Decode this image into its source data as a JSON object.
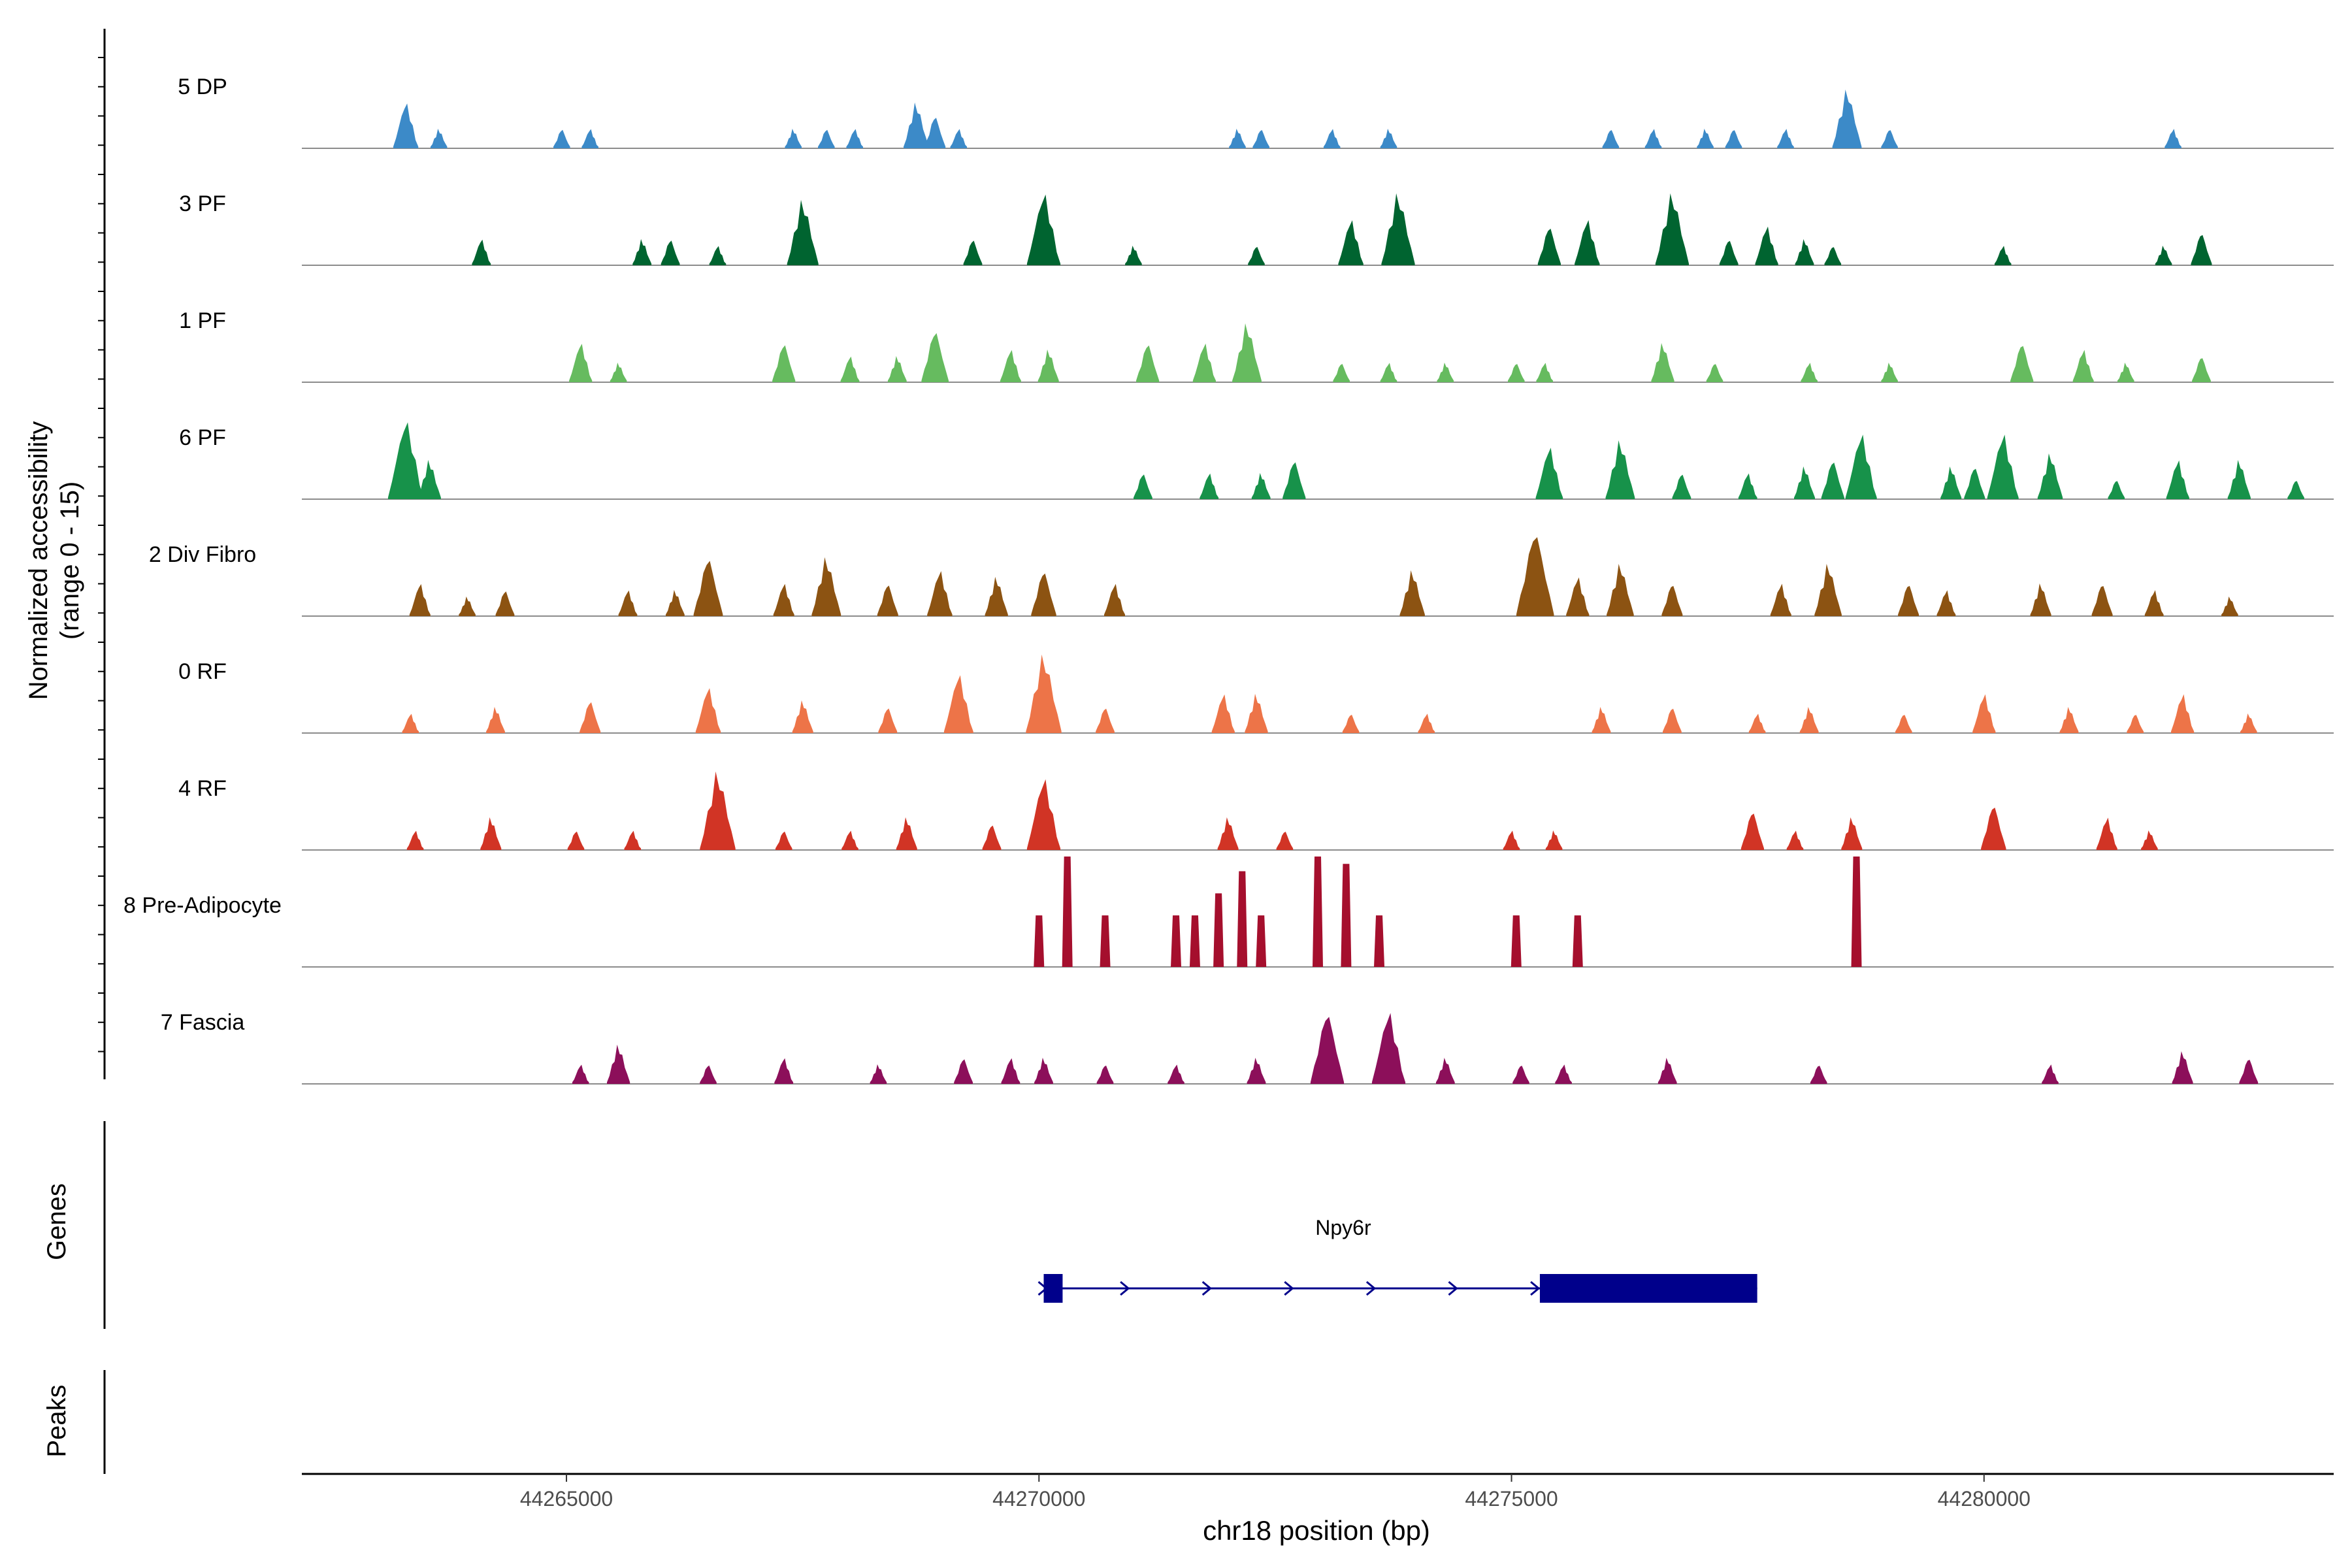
{
  "chart_data": {
    "type": "area",
    "panels": {
      "accessibility": {
        "ylabel_line1": "Normalized accessibility",
        "ylabel_line2": "(range 0 - 15)",
        "ylim": [
          0,
          15
        ],
        "tracks": [
          {
            "name": "5 DP",
            "color": "#3C8AC8",
            "peaks": [
              [
                44263300,
                7
              ],
              [
                44263650,
                3
              ],
              [
                44264950,
                3
              ],
              [
                44265250,
                3
              ],
              [
                44267400,
                3
              ],
              [
                44267750,
                3
              ],
              [
                44268050,
                3
              ],
              [
                44268700,
                7
              ],
              [
                44268900,
                5
              ],
              [
                44269150,
                3
              ],
              [
                44272100,
                3
              ],
              [
                44272350,
                3
              ],
              [
                44273100,
                3
              ],
              [
                44273700,
                3
              ],
              [
                44276050,
                3
              ],
              [
                44276500,
                3
              ],
              [
                44277050,
                3
              ],
              [
                44277350,
                3
              ],
              [
                44277900,
                3
              ],
              [
                44278550,
                9
              ],
              [
                44279000,
                3
              ],
              [
                44282000,
                3
              ]
            ]
          },
          {
            "name": "3 PF",
            "color": "#006430",
            "peaks": [
              [
                44264100,
                4
              ],
              [
                44265800,
                4
              ],
              [
                44266100,
                4
              ],
              [
                44266600,
                3
              ],
              [
                44267500,
                10
              ],
              [
                44269300,
                4
              ],
              [
                44270050,
                11
              ],
              [
                44271000,
                3
              ],
              [
                44272300,
                3
              ],
              [
                44273300,
                7
              ],
              [
                44273800,
                11
              ],
              [
                44275400,
                6
              ],
              [
                44275800,
                7
              ],
              [
                44276700,
                11
              ],
              [
                44277300,
                4
              ],
              [
                44277700,
                6
              ],
              [
                44278100,
                4
              ],
              [
                44278400,
                3
              ],
              [
                44280200,
                3
              ],
              [
                44281900,
                3
              ],
              [
                44282300,
                5
              ]
            ]
          },
          {
            "name": "1 PF",
            "color": "#66BB5F",
            "peaks": [
              [
                44265150,
                6
              ],
              [
                44265550,
                3
              ],
              [
                44267300,
                6
              ],
              [
                44268000,
                4
              ],
              [
                44268500,
                4
              ],
              [
                44268900,
                8
              ],
              [
                44269700,
                5
              ],
              [
                44270100,
                5
              ],
              [
                44271150,
                6
              ],
              [
                44271750,
                6
              ],
              [
                44272200,
                9
              ],
              [
                44273200,
                3
              ],
              [
                44273700,
                3
              ],
              [
                44274300,
                3
              ],
              [
                44275050,
                3
              ],
              [
                44275350,
                3
              ],
              [
                44276600,
                6
              ],
              [
                44277150,
                3
              ],
              [
                44278150,
                3
              ],
              [
                44279000,
                3
              ],
              [
                44280400,
                6
              ],
              [
                44281050,
                5
              ],
              [
                44281500,
                3
              ],
              [
                44282300,
                4
              ]
            ]
          },
          {
            "name": "6 PF",
            "color": "#17924A",
            "peaks": [
              [
                44263300,
                12
              ],
              [
                44263550,
                6
              ],
              [
                44271100,
                4
              ],
              [
                44271800,
                4
              ],
              [
                44272350,
                4
              ],
              [
                44272700,
                6
              ],
              [
                44275400,
                8
              ],
              [
                44276150,
                9
              ],
              [
                44276800,
                4
              ],
              [
                44277500,
                4
              ],
              [
                44278100,
                5
              ],
              [
                44278400,
                6
              ],
              [
                44278700,
                10
              ],
              [
                44279650,
                5
              ],
              [
                44279900,
                5
              ],
              [
                44280200,
                10
              ],
              [
                44280700,
                7
              ],
              [
                44281400,
                3
              ],
              [
                44282050,
                6
              ],
              [
                44282700,
                6
              ],
              [
                44283300,
                3
              ]
            ]
          },
          {
            "name": "2 Div Fibro",
            "color": "#8C5312",
            "peaks": [
              [
                44263450,
                5
              ],
              [
                44263950,
                3
              ],
              [
                44264350,
                4
              ],
              [
                44265650,
                4
              ],
              [
                44266150,
                4
              ],
              [
                44266500,
                9
              ],
              [
                44267300,
                5
              ],
              [
                44267750,
                9
              ],
              [
                44268400,
                5
              ],
              [
                44268950,
                7
              ],
              [
                44269550,
                6
              ],
              [
                44270050,
                7
              ],
              [
                44270800,
                5
              ],
              [
                44273950,
                7
              ],
              [
                44275250,
                13
              ],
              [
                44275700,
                6
              ],
              [
                44276150,
                8
              ],
              [
                44276700,
                5
              ],
              [
                44277850,
                5
              ],
              [
                44278350,
                8
              ],
              [
                44279200,
                5
              ],
              [
                44279600,
                4
              ],
              [
                44280600,
                5
              ],
              [
                44281250,
                5
              ],
              [
                44281800,
                4
              ],
              [
                44282600,
                3
              ]
            ]
          },
          {
            "name": "0 RF",
            "color": "#ED7448",
            "peaks": [
              [
                44263350,
                3
              ],
              [
                44264250,
                4
              ],
              [
                44265250,
                5
              ],
              [
                44266500,
                7
              ],
              [
                44267500,
                5
              ],
              [
                44268400,
                4
              ],
              [
                44269150,
                9
              ],
              [
                44270050,
                12
              ],
              [
                44270700,
                4
              ],
              [
                44271950,
                6
              ],
              [
                44272300,
                6
              ],
              [
                44273300,
                3
              ],
              [
                44274100,
                3
              ],
              [
                44275950,
                4
              ],
              [
                44276700,
                4
              ],
              [
                44277600,
                3
              ],
              [
                44278150,
                4
              ],
              [
                44279150,
                3
              ],
              [
                44280000,
                6
              ],
              [
                44280900,
                4
              ],
              [
                44281600,
                3
              ],
              [
                44282100,
                6
              ],
              [
                44282800,
                3
              ]
            ]
          },
          {
            "name": "4 RF",
            "color": "#D13425",
            "peaks": [
              [
                44263400,
                3
              ],
              [
                44264200,
                5
              ],
              [
                44265100,
                3
              ],
              [
                44265700,
                3
              ],
              [
                44266600,
                12
              ],
              [
                44267300,
                3
              ],
              [
                44268000,
                3
              ],
              [
                44268600,
                5
              ],
              [
                44269500,
                4
              ],
              [
                44270050,
                11
              ],
              [
                44272000,
                5
              ],
              [
                44272600,
                3
              ],
              [
                44275000,
                3
              ],
              [
                44275450,
                3
              ],
              [
                44277550,
                6
              ],
              [
                44278000,
                3
              ],
              [
                44278600,
                5
              ],
              [
                44280100,
                7
              ],
              [
                44281300,
                5
              ],
              [
                44281750,
                3
              ]
            ]
          },
          {
            "name": "8 Pre-Adipocyte",
            "color": "#A50F2D",
            "peaks": [
              [
                44270000,
                7
              ],
              [
                44270300,
                15
              ],
              [
                44270700,
                7
              ],
              [
                44271450,
                7
              ],
              [
                44271650,
                7
              ],
              [
                44271900,
                10
              ],
              [
                44272150,
                13
              ],
              [
                44272350,
                7
              ],
              [
                44272950,
                15
              ],
              [
                44273250,
                14
              ],
              [
                44273600,
                7
              ],
              [
                44275050,
                7
              ],
              [
                44275700,
                7
              ],
              [
                44278650,
                15
              ]
            ]
          },
          {
            "name": "7 Fascia",
            "color": "#8C0F5A",
            "peaks": [
              [
                44265150,
                3
              ],
              [
                44265550,
                6
              ],
              [
                44266500,
                3
              ],
              [
                44267300,
                4
              ],
              [
                44268300,
                3
              ],
              [
                44269200,
                4
              ],
              [
                44269700,
                4
              ],
              [
                44270050,
                4
              ],
              [
                44270700,
                3
              ],
              [
                44271450,
                3
              ],
              [
                44272300,
                4
              ],
              [
                44273050,
                11
              ],
              [
                44273700,
                11
              ],
              [
                44274300,
                4
              ],
              [
                44275100,
                3
              ],
              [
                44275550,
                3
              ],
              [
                44276650,
                4
              ],
              [
                44278250,
                3
              ],
              [
                44280700,
                3
              ],
              [
                44282100,
                5
              ],
              [
                44282800,
                4
              ]
            ]
          }
        ]
      },
      "genes": {
        "ylabel": "Genes",
        "gene": {
          "name": "Npy6r",
          "start": 44270050,
          "end": 44277600,
          "strand": "+",
          "exons": [
            [
              44270050,
              44270250
            ],
            [
              44275300,
              44277600
            ]
          ]
        }
      },
      "peaks": {
        "ylabel": "Peaks"
      }
    },
    "x_axis": {
      "xlabel": "chr18 position (bp)",
      "xlim": [
        44262200,
        44283700
      ],
      "ticks": [
        44265000,
        44270000,
        44275000,
        44280000
      ],
      "tick_labels": [
        "44265000",
        "44270000",
        "44275000",
        "44280000"
      ]
    },
    "gene_color": "#00008B"
  }
}
